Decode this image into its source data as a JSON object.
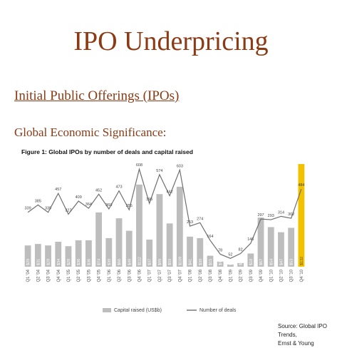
{
  "slide": {
    "title": "IPO Underpricing",
    "section_heading": "Initial Public Offerings (IPOs)",
    "sub_heading": "Global Economic Significance:",
    "source_lines": [
      "Source: Global IPO Trends,",
      "Ernst & Young"
    ]
  },
  "chart_data": {
    "type": "bar",
    "title": "Figure 1: Global IPOs by number of deals and capital raised",
    "categories": [
      "Q1 '04",
      "Q2 '04",
      "Q3 '04",
      "Q4 '04",
      "Q1 '05",
      "Q2 '05",
      "Q3 '05",
      "Q4 '05",
      "Q1 '06",
      "Q2 '06",
      "Q3 '06",
      "Q4 '06",
      "Q1 '07",
      "Q2 '07",
      "Q3 '07",
      "Q4 '07",
      "Q1 '08",
      "Q2 '08",
      "Q3 '08",
      "Q4 '08",
      "Q1 '09",
      "Q2 '09",
      "Q3 '09",
      "Q4 '09",
      "Q1 '10",
      "Q2 '10",
      "Q3 '10",
      "Q4 '10"
    ],
    "series": [
      {
        "name": "Capital raised (US$b)",
        "kind": "bar",
        "values": [
          29,
          31,
          29,
          34,
          28,
          36,
          36,
          74,
          39,
          66,
          49,
          112,
          37,
          99,
          59,
          109,
          41,
          39,
          15,
          7,
          3,
          5,
          18,
          67,
          54,
          47,
          53,
          132
        ],
        "labels": [
          "$29",
          "$31",
          "$29",
          "$34",
          "$28",
          "$36",
          "$36",
          "$74",
          "$39",
          "$66",
          "$49",
          "$112",
          "$37",
          "$99",
          "$59",
          "$109",
          "$41",
          "$39",
          "$15",
          "$7",
          "$3",
          "$5",
          "$18",
          "$67",
          "$54",
          "$47",
          "$53",
          "$132"
        ]
      },
      {
        "name": "Number of deals",
        "kind": "line",
        "values": [
          339,
          385,
          339,
          457,
          327,
          409,
          364,
          452,
          360,
          473,
          355,
          608,
          395,
          574,
          442,
          603,
          253,
          274,
          164,
          78,
          52,
          82,
          146,
          297,
          293,
          314,
          302,
          484
        ]
      }
    ],
    "highlight_category": "Q4 '10",
    "highlight_color": "#f2c200",
    "bar_color": "#bdbdbd",
    "line_color": "#6f6f6f",
    "legend_position": "bottom-center",
    "grid": false
  }
}
